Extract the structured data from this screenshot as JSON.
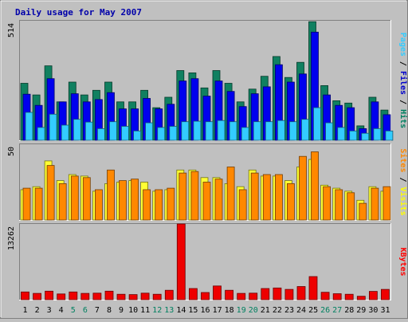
{
  "chart_data": {
    "type": "bar",
    "title": "Daily usage for May 2007",
    "categories": [
      "1",
      "2",
      "3",
      "4",
      "5",
      "6",
      "7",
      "8",
      "9",
      "10",
      "11",
      "12",
      "13",
      "14",
      "15",
      "16",
      "17",
      "18",
      "19",
      "20",
      "21",
      "22",
      "23",
      "24",
      "25",
      "26",
      "27",
      "28",
      "29",
      "30",
      "31"
    ],
    "weekend_days": [
      "5",
      "6",
      "12",
      "13",
      "19",
      "20",
      "26",
      "27"
    ],
    "panels": [
      {
        "id": "hits-files-pages",
        "axis_max_label": "514",
        "ylim": [
          0,
          514
        ],
        "side_label": [
          {
            "text": "Pages",
            "color": "#33ccff"
          },
          {
            "text": " / ",
            "color": "#000000"
          },
          {
            "text": "Files",
            "color": "#0000cc"
          },
          {
            "text": " / ",
            "color": "#000000"
          },
          {
            "text": "Hits",
            "color": "#008060"
          }
        ],
        "series": [
          {
            "name": "Hits",
            "color": "#108060",
            "values": [
              245,
              195,
              320,
              165,
              250,
              195,
              215,
              250,
              165,
              165,
              215,
              140,
              185,
              300,
              290,
              225,
              300,
              245,
              165,
              220,
              275,
              360,
              270,
              335,
              510,
              235,
              170,
              160,
              62,
              185,
              130
            ]
          },
          {
            "name": "Files",
            "color": "#0000ee",
            "values": [
              198,
              150,
              265,
              165,
              200,
              165,
              175,
              205,
              135,
              135,
              180,
              135,
              155,
              255,
              265,
              190,
              255,
              210,
              145,
              200,
              230,
              325,
              250,
              285,
              465,
              195,
              150,
              140,
              50,
              165,
              110
            ]
          },
          {
            "name": "Pages",
            "color": "#33ccff",
            "values": [
              120,
              55,
              112,
              65,
              90,
              78,
              50,
              80,
              60,
              40,
              75,
              55,
              60,
              80,
              82,
              80,
              85,
              80,
              55,
              80,
              80,
              85,
              80,
              90,
              140,
              75,
              55,
              40,
              30,
              50,
              40
            ]
          }
        ]
      },
      {
        "id": "visits-sites",
        "axis_max_label": "50",
        "ylim": [
          0,
          50
        ],
        "side_label": [
          {
            "text": "Sites",
            "color": "#ff8800"
          },
          {
            "text": " / ",
            "color": "#000000"
          },
          {
            "text": "Visits",
            "color": "#ffff00"
          }
        ],
        "series": [
          {
            "name": "Visits",
            "color": "#ffff33",
            "values": [
              20,
              22,
              39,
              26,
              30,
              29,
              19,
              24,
              25,
              26,
              25,
              19,
              20,
              33,
              33,
              28,
              28,
              24,
              22,
              33,
              29,
              29,
              26,
              35,
              40,
              23,
              21,
              19,
              13,
              22,
              19
            ]
          },
          {
            "name": "Sites",
            "color": "#ff8800",
            "values": [
              21,
              21,
              36,
              24,
              29,
              28,
              20,
              33,
              26,
              27,
              20,
              20,
              21,
              31,
              32,
              25,
              27,
              35,
              20,
              31,
              30,
              30,
              24,
              42,
              45,
              22,
              20,
              18,
              11,
              21,
              22
            ]
          }
        ]
      },
      {
        "id": "kbytes",
        "axis_max_label": "13262",
        "ylim": [
          0,
          13262
        ],
        "side_label": [
          {
            "text": "KBytes",
            "color": "#ff0000"
          }
        ],
        "series": [
          {
            "name": "KBytes",
            "color": "#ee0000",
            "values": [
              1350,
              1100,
              1500,
              1000,
              1350,
              1100,
              1150,
              1500,
              950,
              900,
              1150,
              950,
              1650,
              13262,
              1950,
              1250,
              2400,
              1650,
              1100,
              1150,
              1950,
              2050,
              1800,
              2300,
              4050,
              1300,
              1050,
              950,
              600,
              1450,
              1800
            ]
          }
        ]
      }
    ]
  }
}
